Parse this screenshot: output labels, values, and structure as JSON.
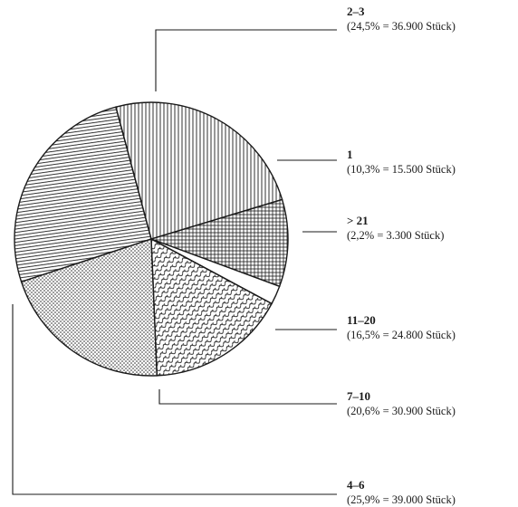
{
  "chart_data": {
    "type": "pie",
    "start_angle_deg": 105,
    "direction": "clockwise",
    "legend": "callout-labels-right",
    "slices": [
      {
        "category": "2–3",
        "label": "(24,5% = 36.900 Stück)",
        "percent": 24.5,
        "count": 36900,
        "pattern": "pat-vertical"
      },
      {
        "category": "1",
        "label": "(10,3% = 15.500 Stück)",
        "percent": 10.3,
        "count": 15500,
        "pattern": "pat-crosshatch"
      },
      {
        "category": "> 21",
        "label": "(2,2% = 3.300 Stück)",
        "percent": 2.2,
        "count": 3300,
        "pattern": "pat-blank"
      },
      {
        "category": "11–20",
        "label": "(16,5% = 24.800 Stück)",
        "percent": 16.5,
        "count": 24800,
        "pattern": "pat-wavy"
      },
      {
        "category": "7–10",
        "label": "(20,6% = 30.900 Stück)",
        "percent": 20.6,
        "count": 30900,
        "pattern": "pat-dots"
      },
      {
        "category": "4–6",
        "label": "(25,9% = 39.000 Stück)",
        "percent": 25.9,
        "count": 39000,
        "pattern": "pat-horizontal"
      }
    ]
  }
}
